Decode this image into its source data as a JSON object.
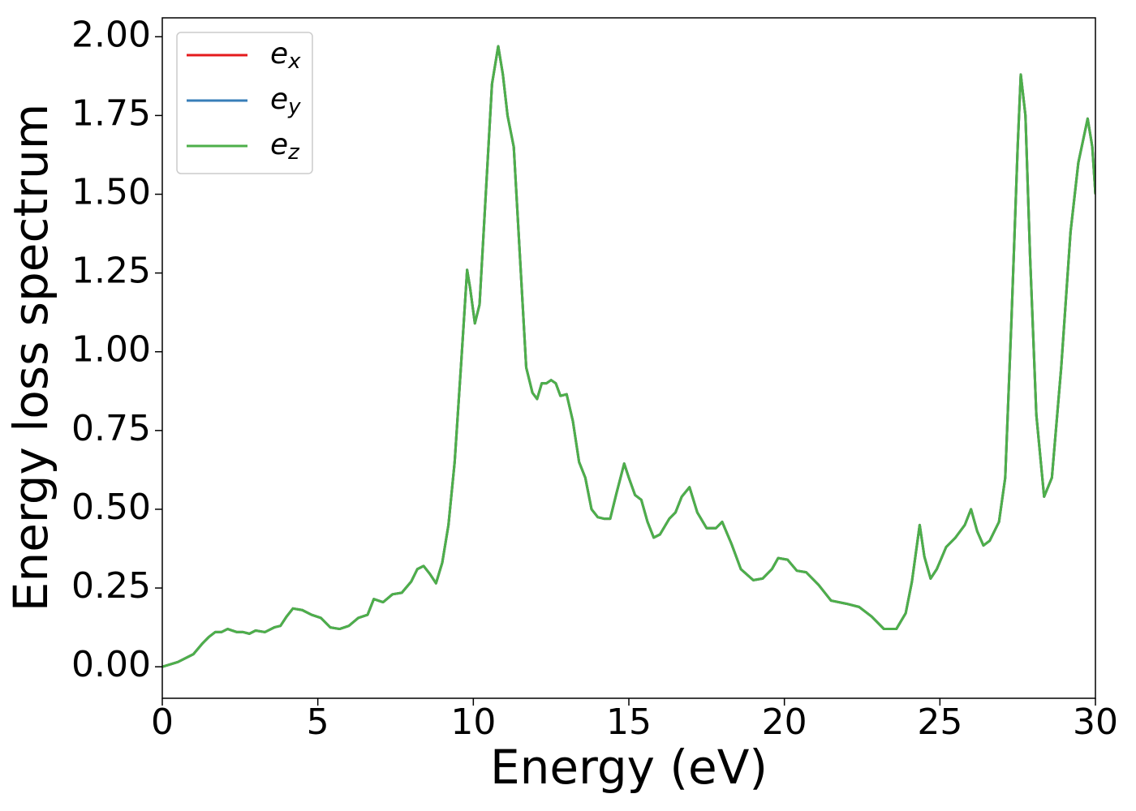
{
  "chart_data": {
    "type": "line",
    "xlabel": "Energy (eV)",
    "ylabel": "Energy loss spectrum",
    "x": [
      0,
      0.5,
      1.0,
      1.3,
      1.5,
      1.7,
      1.9,
      2.1,
      2.4,
      2.6,
      2.8,
      3.0,
      3.3,
      3.6,
      3.8,
      4.0,
      4.2,
      4.5,
      4.8,
      5.1,
      5.4,
      5.7,
      6.0,
      6.3,
      6.6,
      6.8,
      7.1,
      7.4,
      7.7,
      8.0,
      8.2,
      8.4,
      8.6,
      8.8,
      9.0,
      9.2,
      9.4,
      9.6,
      9.8,
      9.9,
      10.05,
      10.2,
      10.4,
      10.6,
      10.8,
      10.95,
      11.1,
      11.3,
      11.5,
      11.7,
      11.9,
      12.05,
      12.2,
      12.35,
      12.5,
      12.65,
      12.8,
      13.0,
      13.2,
      13.4,
      13.6,
      13.8,
      14.0,
      14.2,
      14.4,
      14.6,
      14.85,
      15.0,
      15.2,
      15.4,
      15.6,
      15.8,
      16.0,
      16.3,
      16.5,
      16.7,
      16.95,
      17.2,
      17.5,
      17.8,
      18.0,
      18.3,
      18.6,
      19.0,
      19.3,
      19.6,
      19.8,
      20.1,
      20.4,
      20.7,
      21.1,
      21.5,
      22.0,
      22.4,
      22.8,
      23.2,
      23.6,
      23.9,
      24.1,
      24.35,
      24.5,
      24.7,
      24.9,
      25.2,
      25.5,
      25.8,
      26.0,
      26.2,
      26.4,
      26.6,
      26.9,
      27.1,
      27.3,
      27.5,
      27.6,
      27.75,
      27.9,
      28.1,
      28.35,
      28.6,
      28.9,
      29.2,
      29.45,
      29.75,
      29.9,
      30.0
    ],
    "series": [
      {
        "name": "ex",
        "color": "#e41a1c",
        "values": [
          0.0,
          0.015,
          0.04,
          0.075,
          0.095,
          0.11,
          0.11,
          0.12,
          0.11,
          0.11,
          0.105,
          0.115,
          0.11,
          0.125,
          0.13,
          0.16,
          0.185,
          0.18,
          0.165,
          0.155,
          0.125,
          0.12,
          0.13,
          0.155,
          0.165,
          0.215,
          0.205,
          0.23,
          0.235,
          0.27,
          0.31,
          0.32,
          0.295,
          0.265,
          0.33,
          0.45,
          0.65,
          0.95,
          1.26,
          1.2,
          1.09,
          1.15,
          1.5,
          1.85,
          1.97,
          1.88,
          1.75,
          1.65,
          1.3,
          0.95,
          0.87,
          0.85,
          0.9,
          0.9,
          0.91,
          0.9,
          0.86,
          0.865,
          0.78,
          0.65,
          0.6,
          0.5,
          0.475,
          0.47,
          0.47,
          0.55,
          0.645,
          0.6,
          0.545,
          0.53,
          0.46,
          0.41,
          0.42,
          0.47,
          0.49,
          0.54,
          0.57,
          0.49,
          0.44,
          0.44,
          0.46,
          0.39,
          0.31,
          0.275,
          0.28,
          0.31,
          0.345,
          0.34,
          0.305,
          0.3,
          0.26,
          0.21,
          0.2,
          0.19,
          0.16,
          0.12,
          0.12,
          0.17,
          0.27,
          0.45,
          0.35,
          0.28,
          0.31,
          0.38,
          0.41,
          0.45,
          0.5,
          0.43,
          0.385,
          0.4,
          0.46,
          0.6,
          1.1,
          1.65,
          1.88,
          1.75,
          1.3,
          0.8,
          0.54,
          0.6,
          0.95,
          1.38,
          1.6,
          1.74,
          1.65,
          1.5
        ]
      },
      {
        "name": "ey",
        "color": "#377eb8",
        "values": [
          0.0,
          0.015,
          0.04,
          0.075,
          0.095,
          0.11,
          0.11,
          0.12,
          0.11,
          0.11,
          0.105,
          0.115,
          0.11,
          0.125,
          0.13,
          0.16,
          0.185,
          0.18,
          0.165,
          0.155,
          0.125,
          0.12,
          0.13,
          0.155,
          0.165,
          0.215,
          0.205,
          0.23,
          0.235,
          0.27,
          0.31,
          0.32,
          0.295,
          0.265,
          0.33,
          0.45,
          0.65,
          0.95,
          1.26,
          1.2,
          1.09,
          1.15,
          1.5,
          1.85,
          1.97,
          1.88,
          1.75,
          1.65,
          1.3,
          0.95,
          0.87,
          0.85,
          0.9,
          0.9,
          0.91,
          0.9,
          0.86,
          0.865,
          0.78,
          0.65,
          0.6,
          0.5,
          0.475,
          0.47,
          0.47,
          0.55,
          0.645,
          0.6,
          0.545,
          0.53,
          0.46,
          0.41,
          0.42,
          0.47,
          0.49,
          0.54,
          0.57,
          0.49,
          0.44,
          0.44,
          0.46,
          0.39,
          0.31,
          0.275,
          0.28,
          0.31,
          0.345,
          0.34,
          0.305,
          0.3,
          0.26,
          0.21,
          0.2,
          0.19,
          0.16,
          0.12,
          0.12,
          0.17,
          0.27,
          0.45,
          0.35,
          0.28,
          0.31,
          0.38,
          0.41,
          0.45,
          0.5,
          0.43,
          0.385,
          0.4,
          0.46,
          0.6,
          1.1,
          1.65,
          1.88,
          1.75,
          1.3,
          0.8,
          0.54,
          0.6,
          0.95,
          1.38,
          1.6,
          1.74,
          1.65,
          1.5
        ]
      },
      {
        "name": "ez",
        "color": "#4daf4a",
        "values": [
          0.0,
          0.015,
          0.04,
          0.075,
          0.095,
          0.11,
          0.11,
          0.12,
          0.11,
          0.11,
          0.105,
          0.115,
          0.11,
          0.125,
          0.13,
          0.16,
          0.185,
          0.18,
          0.165,
          0.155,
          0.125,
          0.12,
          0.13,
          0.155,
          0.165,
          0.215,
          0.205,
          0.23,
          0.235,
          0.27,
          0.31,
          0.32,
          0.295,
          0.265,
          0.33,
          0.45,
          0.65,
          0.95,
          1.26,
          1.2,
          1.09,
          1.15,
          1.5,
          1.85,
          1.97,
          1.88,
          1.75,
          1.65,
          1.3,
          0.95,
          0.87,
          0.85,
          0.9,
          0.9,
          0.91,
          0.9,
          0.86,
          0.865,
          0.78,
          0.65,
          0.6,
          0.5,
          0.475,
          0.47,
          0.47,
          0.55,
          0.645,
          0.6,
          0.545,
          0.53,
          0.46,
          0.41,
          0.42,
          0.47,
          0.49,
          0.54,
          0.57,
          0.49,
          0.44,
          0.44,
          0.46,
          0.39,
          0.31,
          0.275,
          0.28,
          0.31,
          0.345,
          0.34,
          0.305,
          0.3,
          0.26,
          0.21,
          0.2,
          0.19,
          0.16,
          0.12,
          0.12,
          0.17,
          0.27,
          0.45,
          0.35,
          0.28,
          0.31,
          0.38,
          0.41,
          0.45,
          0.5,
          0.43,
          0.385,
          0.4,
          0.46,
          0.6,
          1.1,
          1.65,
          1.88,
          1.75,
          1.3,
          0.8,
          0.54,
          0.6,
          0.95,
          1.38,
          1.6,
          1.74,
          1.65,
          1.5
        ]
      }
    ],
    "xlim": [
      0,
      30
    ],
    "xticks": [
      0,
      5,
      10,
      15,
      20,
      25,
      30
    ],
    "ylim": [
      -0.1,
      2.06
    ],
    "yticks": [
      {
        "value": 0,
        "label": "0.00"
      },
      {
        "value": 0.25,
        "label": "0.25"
      },
      {
        "value": 0.5,
        "label": "0.50"
      },
      {
        "value": 0.75,
        "label": "0.75"
      },
      {
        "value": 1,
        "label": "1.00"
      },
      {
        "value": 1.25,
        "label": "1.25"
      },
      {
        "value": 1.5,
        "label": "1.50"
      },
      {
        "value": 1.75,
        "label": "1.75"
      },
      {
        "value": 2,
        "label": "2.00"
      }
    ],
    "grid": false,
    "legend": "upper left"
  }
}
